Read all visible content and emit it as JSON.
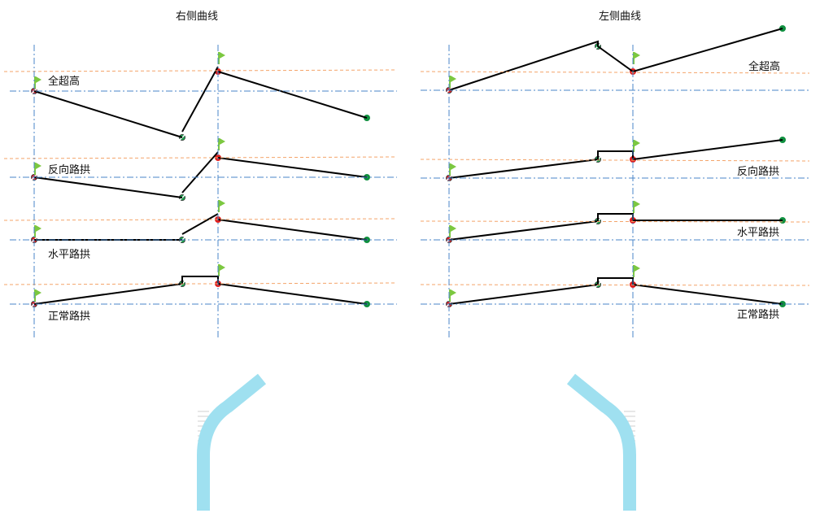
{
  "panels": [
    {
      "title": "右侧曲线",
      "labels": [
        "全超高",
        "反向路拱",
        "水平路拱",
        "正常路拱"
      ]
    },
    {
      "title": "左侧曲线",
      "labels": [
        "全超高",
        "反向路拱",
        "水平路拱",
        "正常路拱"
      ]
    }
  ],
  "colors": {
    "axis": "#4a86c8",
    "crown": "#f4a46a",
    "profile": "#000000",
    "start": "#e02020",
    "mid": "#20a050",
    "end": "#109040",
    "flag": "#7cc840",
    "road_edge": "#9fe0f0",
    "road_center": "#f08080",
    "curve_center": "#6060e0"
  }
}
